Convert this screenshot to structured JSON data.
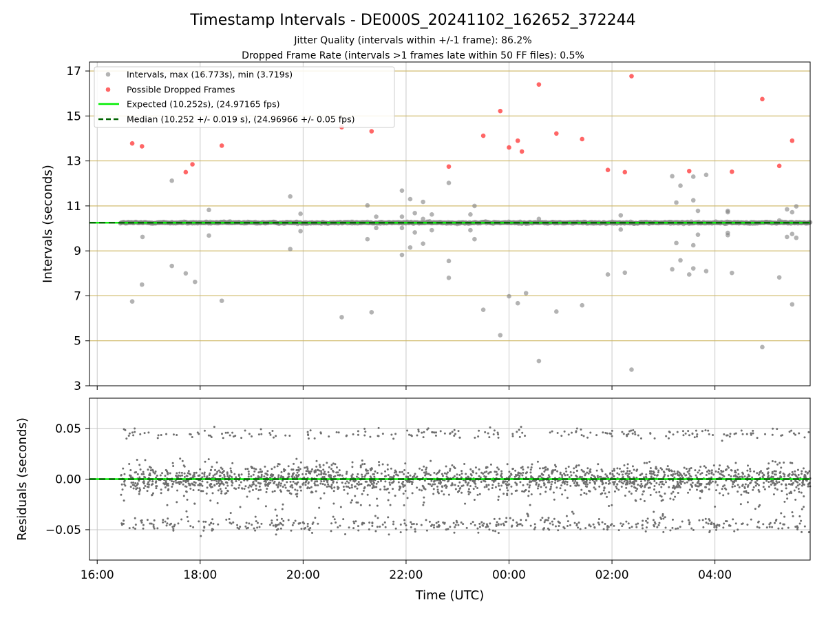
{
  "figure": {
    "title": "Timestamp Intervals - DE000S_20241102_162652_372244",
    "subtitle_1": "Jitter Quality (intervals within +/-1 frame): 86.2%",
    "subtitle_2": "Dropped Frame Rate (intervals >1 frames late within 50 FF files): 0.5%"
  },
  "colors": {
    "interval": "#808080",
    "dropped": "#ff3333",
    "expected": "#00ee00",
    "median": "#006400",
    "top_grid": "#cdb560",
    "bottom_grid": "#c8c8c8",
    "residual": "#6e6e6e"
  },
  "chart_data": [
    {
      "type": "scatter",
      "id": "intervals",
      "ylabel": "Intervals (seconds)",
      "xlabel": "",
      "x_unit": "hours since 16:00 UTC (axis displays clock time)",
      "xlim": [
        -0.15,
        13.85
      ],
      "ylim": [
        3,
        17.4
      ],
      "y_ticks": [
        3,
        5,
        7,
        9,
        11,
        13,
        15,
        17
      ],
      "x_ticks": [
        "16:00",
        "18:00",
        "20:00",
        "22:00",
        "00:00",
        "02:00",
        "04:00"
      ],
      "grid": true,
      "legend_position": "upper-left",
      "legend": [
        {
          "label": "Intervals, max (16.773s), min (3.719s)",
          "marker": "dot",
          "color": "#808080"
        },
        {
          "label": "Possible Dropped Frames",
          "marker": "dot",
          "color": "#ff3333"
        },
        {
          "label": "Expected (10.252s), (24.97165 fps)",
          "marker": "solid-line",
          "color": "#00ee00"
        },
        {
          "label": "Median (10.252 +/- 0.019 s), (24.96966 +/- 0.05 fps)",
          "marker": "dashed-line",
          "color": "#006400"
        }
      ],
      "expected": 10.252,
      "median": 10.252,
      "baseline_x_range": [
        0.45,
        13.85
      ],
      "series": [
        {
          "name": "Intervals, max (16.773s), min (3.719s)",
          "points": [
            [
              0.68,
              6.75
            ],
            [
              0.87,
              7.5
            ],
            [
              0.88,
              9.62
            ],
            [
              1.45,
              12.12
            ],
            [
              1.45,
              8.33
            ],
            [
              1.72,
              8.0
            ],
            [
              1.9,
              7.62
            ],
            [
              2.17,
              10.82
            ],
            [
              2.17,
              9.68
            ],
            [
              2.42,
              6.78
            ],
            [
              3.75,
              11.42
            ],
            [
              3.75,
              9.08
            ],
            [
              3.95,
              10.65
            ],
            [
              3.95,
              9.88
            ],
            [
              4.75,
              6.05
            ],
            [
              5.25,
              11.02
            ],
            [
              5.25,
              9.52
            ],
            [
              5.33,
              6.27
            ],
            [
              5.42,
              10.52
            ],
            [
              5.42,
              10.02
            ],
            [
              5.92,
              11.68
            ],
            [
              5.92,
              10.52
            ],
            [
              5.92,
              10.02
            ],
            [
              5.92,
              8.82
            ],
            [
              6.08,
              11.3
            ],
            [
              6.08,
              9.15
            ],
            [
              6.17,
              10.68
            ],
            [
              6.17,
              9.82
            ],
            [
              6.33,
              11.18
            ],
            [
              6.33,
              10.42
            ],
            [
              6.33,
              9.32
            ],
            [
              6.5,
              10.62
            ],
            [
              6.5,
              9.92
            ],
            [
              6.83,
              12.02
            ],
            [
              6.83,
              8.55
            ],
            [
              6.83,
              7.8
            ],
            [
              7.25,
              10.62
            ],
            [
              7.25,
              9.92
            ],
            [
              7.33,
              11.0
            ],
            [
              7.33,
              9.52
            ],
            [
              7.5,
              6.38
            ],
            [
              7.83,
              5.25
            ],
            [
              8.0,
              6.98
            ],
            [
              8.17,
              6.67
            ],
            [
              8.33,
              7.12
            ],
            [
              8.58,
              10.42
            ],
            [
              8.58,
              4.1
            ],
            [
              8.92,
              6.3
            ],
            [
              9.42,
              6.58
            ],
            [
              9.92,
              7.95
            ],
            [
              10.17,
              10.58
            ],
            [
              10.17,
              9.95
            ],
            [
              10.25,
              8.03
            ],
            [
              10.38,
              3.72
            ],
            [
              11.17,
              12.32
            ],
            [
              11.17,
              8.18
            ],
            [
              11.25,
              11.15
            ],
            [
              11.25,
              9.35
            ],
            [
              11.33,
              11.9
            ],
            [
              11.33,
              8.58
            ],
            [
              11.5,
              7.95
            ],
            [
              11.58,
              12.3
            ],
            [
              11.58,
              11.25
            ],
            [
              11.58,
              9.25
            ],
            [
              11.58,
              8.22
            ],
            [
              11.67,
              10.78
            ],
            [
              11.67,
              9.72
            ],
            [
              11.83,
              12.38
            ],
            [
              11.83,
              8.1
            ],
            [
              12.25,
              10.78
            ],
            [
              12.25,
              10.72
            ],
            [
              12.25,
              9.8
            ],
            [
              12.25,
              9.7
            ],
            [
              12.33,
              8.02
            ],
            [
              12.92,
              4.72
            ],
            [
              13.25,
              7.82
            ],
            [
              13.25,
              10.35
            ],
            [
              13.4,
              10.85
            ],
            [
              13.4,
              9.62
            ],
            [
              13.5,
              10.72
            ],
            [
              13.5,
              9.75
            ],
            [
              13.58,
              10.98
            ],
            [
              13.58,
              9.58
            ],
            [
              13.5,
              6.62
            ]
          ]
        },
        {
          "name": "Possible Dropped Frames",
          "points": [
            [
              0.68,
              13.78
            ],
            [
              0.87,
              13.65
            ],
            [
              1.72,
              12.5
            ],
            [
              1.85,
              12.85
            ],
            [
              2.42,
              13.68
            ],
            [
              4.75,
              14.5
            ],
            [
              5.33,
              14.32
            ],
            [
              6.83,
              12.75
            ],
            [
              7.5,
              14.12
            ],
            [
              7.83,
              15.22
            ],
            [
              8.0,
              13.6
            ],
            [
              8.17,
              13.9
            ],
            [
              8.25,
              13.42
            ],
            [
              8.58,
              16.4
            ],
            [
              8.92,
              14.22
            ],
            [
              9.42,
              13.97
            ],
            [
              9.92,
              12.6
            ],
            [
              10.25,
              12.5
            ],
            [
              10.38,
              16.77
            ],
            [
              11.5,
              12.55
            ],
            [
              12.33,
              12.52
            ],
            [
              12.92,
              15.75
            ],
            [
              13.25,
              12.78
            ],
            [
              13.5,
              13.9
            ]
          ]
        }
      ]
    },
    {
      "type": "scatter",
      "id": "residuals",
      "ylabel": "Residuals (seconds)",
      "xlabel": "Time (UTC)",
      "x_unit": "hours since 16:00 UTC (axis displays clock time)",
      "xlim": [
        -0.15,
        13.85
      ],
      "ylim": [
        -0.08,
        0.08
      ],
      "y_ticks": [
        0.05,
        0.0,
        -0.05
      ],
      "y_tick_labels": [
        "0.05",
        "0.00",
        "−0.05"
      ],
      "x_ticks": [
        "16:00",
        "18:00",
        "20:00",
        "22:00",
        "00:00",
        "02:00",
        "04:00"
      ],
      "grid": true,
      "reference_line": 0.0,
      "series": [
        {
          "name": "",
          "x_range": [
            0.45,
            13.85
          ],
          "point_count": 2600,
          "value_bands": [
            {
              "center": 0.0,
              "spread": 0.012,
              "fraction": 0.7
            },
            {
              "center": -0.045,
              "spread": 0.006,
              "fraction": 0.16
            },
            {
              "center": 0.045,
              "spread": 0.004,
              "fraction": 0.08
            },
            {
              "center": -0.02,
              "spread": 0.02,
              "fraction": 0.06
            }
          ]
        }
      ]
    }
  ]
}
